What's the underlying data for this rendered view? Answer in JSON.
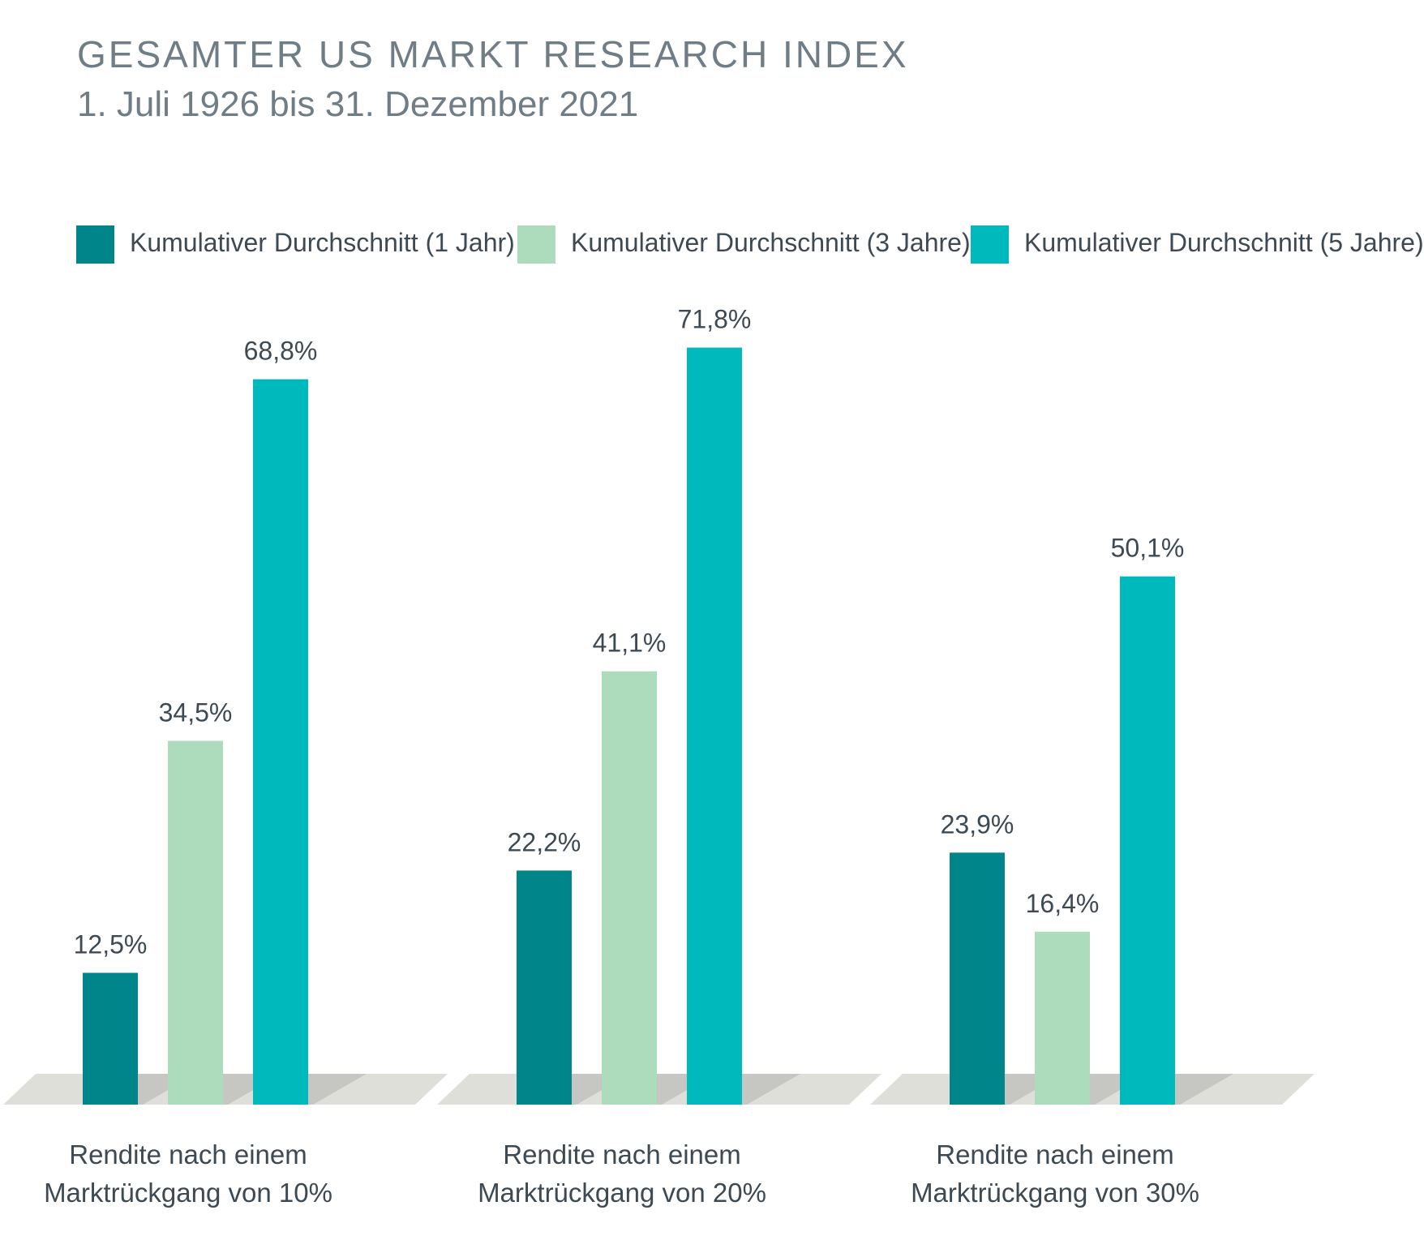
{
  "chart_data": {
    "type": "bar",
    "title": "GESAMTER US MARKT RESEARCH INDEX",
    "subtitle": "1. Juli 1926 bis 31. Dezember 2021",
    "categories": [
      [
        "Rendite nach einem",
        "Marktrückgang von 10%"
      ],
      [
        "Rendite nach einem",
        "Marktrückgang von 20%"
      ],
      [
        "Rendite nach einem",
        "Marktrückgang von 30%"
      ]
    ],
    "series": [
      {
        "name": "Kumulativer Durchschnitt (1 Jahr)",
        "color": "#00858a",
        "values": [
          12.5,
          22.2,
          23.9
        ],
        "labels": [
          "12,5%",
          "22,2%",
          "23,9%"
        ]
      },
      {
        "name": "Kumulativer Durchschnitt (3 Jahre)",
        "color": "#addcbd",
        "values": [
          34.5,
          41.1,
          16.4
        ],
        "labels": [
          "34,5%",
          "41,1%",
          "16,4%"
        ]
      },
      {
        "name": "Kumulativer Durchschnitt (5 Jahre)",
        "color": "#00b9bd",
        "values": [
          68.8,
          71.8,
          50.1
        ],
        "labels": [
          "68,8%",
          "71,8%",
          "50,1%"
        ]
      }
    ],
    "xlabel": "",
    "ylabel": "",
    "ylim": [
      0,
      75
    ],
    "grid": false,
    "legend": "top"
  }
}
